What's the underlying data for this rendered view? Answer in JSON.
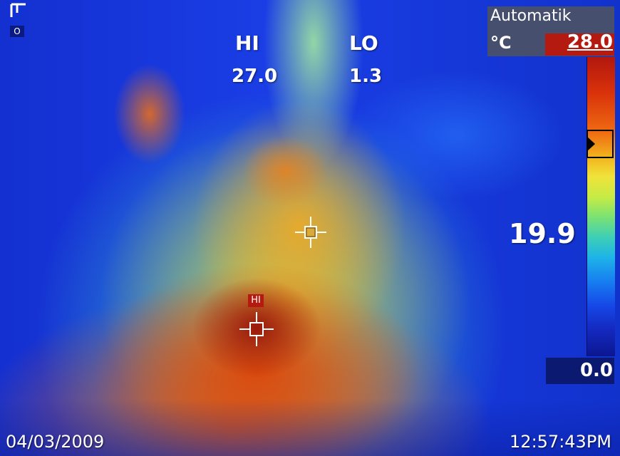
{
  "readout": {
    "hi_label": "HI",
    "lo_label": "LO",
    "hi_value": "27.0",
    "lo_value": "1.3"
  },
  "corner": {
    "label": "O"
  },
  "scale": {
    "mode": "Automatik",
    "unit": "°C",
    "max": "28.0",
    "min": "0.0",
    "level_value": "19.9",
    "level_fraction": 0.71
  },
  "markers": {
    "hot_spot_tag": "HI"
  },
  "footer": {
    "date": "04/03/2009",
    "time": "12:57:43PM"
  },
  "colors": {
    "hot": "#b51a10",
    "cold": "#0b1a70",
    "panel": "#46506e"
  }
}
